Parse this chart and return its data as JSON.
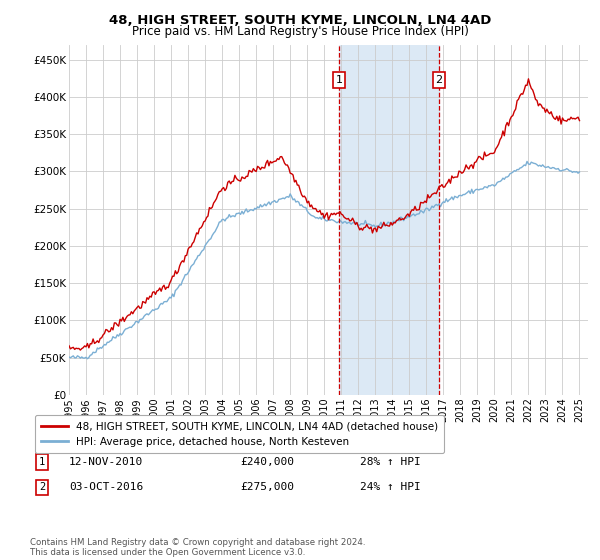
{
  "title": "48, HIGH STREET, SOUTH KYME, LINCOLN, LN4 4AD",
  "subtitle": "Price paid vs. HM Land Registry's House Price Index (HPI)",
  "red_label": "48, HIGH STREET, SOUTH KYME, LINCOLN, LN4 4AD (detached house)",
  "blue_label": "HPI: Average price, detached house, North Kesteven",
  "annotation1_date": "12-NOV-2010",
  "annotation1_price": "£240,000",
  "annotation1_hpi": "28% ↑ HPI",
  "annotation2_date": "03-OCT-2016",
  "annotation2_price": "£275,000",
  "annotation2_hpi": "24% ↑ HPI",
  "vline1_x": 2010.87,
  "vline2_x": 2016.75,
  "footer": "Contains HM Land Registry data © Crown copyright and database right 2024.\nThis data is licensed under the Open Government Licence v3.0.",
  "bg_color": "#ffffff",
  "plot_bg_color": "#ffffff",
  "shade_color": "#dce9f5",
  "grid_color": "#cccccc",
  "red_color": "#cc0000",
  "blue_color": "#7bafd4",
  "ylim": [
    0,
    470000
  ],
  "xlim": [
    1995,
    2025.5
  ],
  "yticks": [
    0,
    50000,
    100000,
    150000,
    200000,
    250000,
    300000,
    350000,
    400000,
    450000
  ],
  "xticks": [
    1995,
    1996,
    1997,
    1998,
    1999,
    2000,
    2001,
    2002,
    2003,
    2004,
    2005,
    2006,
    2007,
    2008,
    2009,
    2010,
    2011,
    2012,
    2013,
    2014,
    2015,
    2016,
    2017,
    2018,
    2019,
    2020,
    2021,
    2022,
    2023,
    2024,
    2025
  ]
}
